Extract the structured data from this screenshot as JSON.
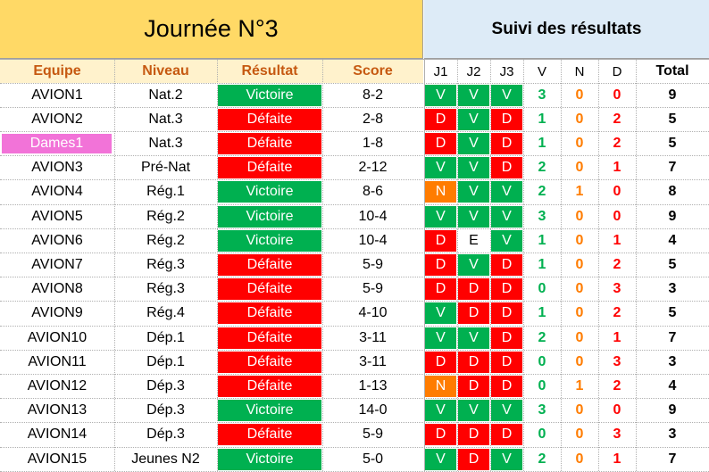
{
  "header": {
    "title": "Journée N°3",
    "suivi_title": "Suivi des résultats"
  },
  "columns": {
    "equipe": "Equipe",
    "niveau": "Niveau",
    "resultat": "Résultat",
    "score": "Score",
    "j1": "J1",
    "j2": "J2",
    "j3": "J3",
    "v": "V",
    "n": "N",
    "d": "D",
    "total": "Total"
  },
  "colors": {
    "victoire": "#00B050",
    "defaite": "#FF0000",
    "nul": "#FF7C00",
    "title_bg": "#FFD966",
    "suivi_bg": "#DDEBF7",
    "col_header_bg": "#FFF2CC",
    "col_header_text": "#C65911",
    "dames_bg": "#F273D8"
  },
  "rows": [
    {
      "equipe": "AVION1",
      "niveau": "Nat.2",
      "resultat": "Victoire",
      "score": "8-2",
      "j1": "V",
      "j2": "V",
      "j3": "V",
      "v": "3",
      "n": "0",
      "d": "0",
      "total": "9"
    },
    {
      "equipe": "AVION2",
      "niveau": "Nat.3",
      "resultat": "Défaite",
      "score": "2-8",
      "j1": "D",
      "j2": "V",
      "j3": "D",
      "v": "1",
      "n": "0",
      "d": "2",
      "total": "5"
    },
    {
      "equipe": "Dames1",
      "niveau": "Nat.3",
      "resultat": "Défaite",
      "score": "1-8",
      "j1": "D",
      "j2": "V",
      "j3": "D",
      "v": "1",
      "n": "0",
      "d": "2",
      "total": "5"
    },
    {
      "equipe": "AVION3",
      "niveau": "Pré-Nat",
      "resultat": "Défaite",
      "score": "2-12",
      "j1": "V",
      "j2": "V",
      "j3": "D",
      "v": "2",
      "n": "0",
      "d": "1",
      "total": "7"
    },
    {
      "equipe": "AVION4",
      "niveau": "Rég.1",
      "resultat": "Victoire",
      "score": "8-6",
      "j1": "N",
      "j2": "V",
      "j3": "V",
      "v": "2",
      "n": "1",
      "d": "0",
      "total": "8"
    },
    {
      "equipe": "AVION5",
      "niveau": "Rég.2",
      "resultat": "Victoire",
      "score": "10-4",
      "j1": "V",
      "j2": "V",
      "j3": "V",
      "v": "3",
      "n": "0",
      "d": "0",
      "total": "9"
    },
    {
      "equipe": "AVION6",
      "niveau": "Rég.2",
      "resultat": "Victoire",
      "score": "10-4",
      "j1": "D",
      "j2": "E",
      "j3": "V",
      "v": "1",
      "n": "0",
      "d": "1",
      "total": "4"
    },
    {
      "equipe": "AVION7",
      "niveau": "Rég.3",
      "resultat": "Défaite",
      "score": "5-9",
      "j1": "D",
      "j2": "V",
      "j3": "D",
      "v": "1",
      "n": "0",
      "d": "2",
      "total": "5"
    },
    {
      "equipe": "AVION8",
      "niveau": "Rég.3",
      "resultat": "Défaite",
      "score": "5-9",
      "j1": "D",
      "j2": "D",
      "j3": "D",
      "v": "0",
      "n": "0",
      "d": "3",
      "total": "3"
    },
    {
      "equipe": "AVION9",
      "niveau": "Rég.4",
      "resultat": "Défaite",
      "score": "4-10",
      "j1": "V",
      "j2": "D",
      "j3": "D",
      "v": "1",
      "n": "0",
      "d": "2",
      "total": "5"
    },
    {
      "equipe": "AVION10",
      "niveau": "Dép.1",
      "resultat": "Défaite",
      "score": "3-11",
      "j1": "V",
      "j2": "V",
      "j3": "D",
      "v": "2",
      "n": "0",
      "d": "1",
      "total": "7"
    },
    {
      "equipe": "AVION11",
      "niveau": "Dép.1",
      "resultat": "Défaite",
      "score": "3-11",
      "j1": "D",
      "j2": "D",
      "j3": "D",
      "v": "0",
      "n": "0",
      "d": "3",
      "total": "3"
    },
    {
      "equipe": "AVION12",
      "niveau": "Dép.3",
      "resultat": "Défaite",
      "score": "1-13",
      "j1": "N",
      "j2": "D",
      "j3": "D",
      "v": "0",
      "n": "1",
      "d": "2",
      "total": "4"
    },
    {
      "equipe": "AVION13",
      "niveau": "Dép.3",
      "resultat": "Victoire",
      "score": "14-0",
      "j1": "V",
      "j2": "V",
      "j3": "V",
      "v": "3",
      "n": "0",
      "d": "0",
      "total": "9"
    },
    {
      "equipe": "AVION14",
      "niveau": "Dép.3",
      "resultat": "Défaite",
      "score": "5-9",
      "j1": "D",
      "j2": "D",
      "j3": "D",
      "v": "0",
      "n": "0",
      "d": "3",
      "total": "3"
    },
    {
      "equipe": "AVION15",
      "niveau": "Jeunes N2",
      "resultat": "Victoire",
      "score": "5-0",
      "j1": "V",
      "j2": "D",
      "j3": "V",
      "v": "2",
      "n": "0",
      "d": "1",
      "total": "7"
    }
  ]
}
